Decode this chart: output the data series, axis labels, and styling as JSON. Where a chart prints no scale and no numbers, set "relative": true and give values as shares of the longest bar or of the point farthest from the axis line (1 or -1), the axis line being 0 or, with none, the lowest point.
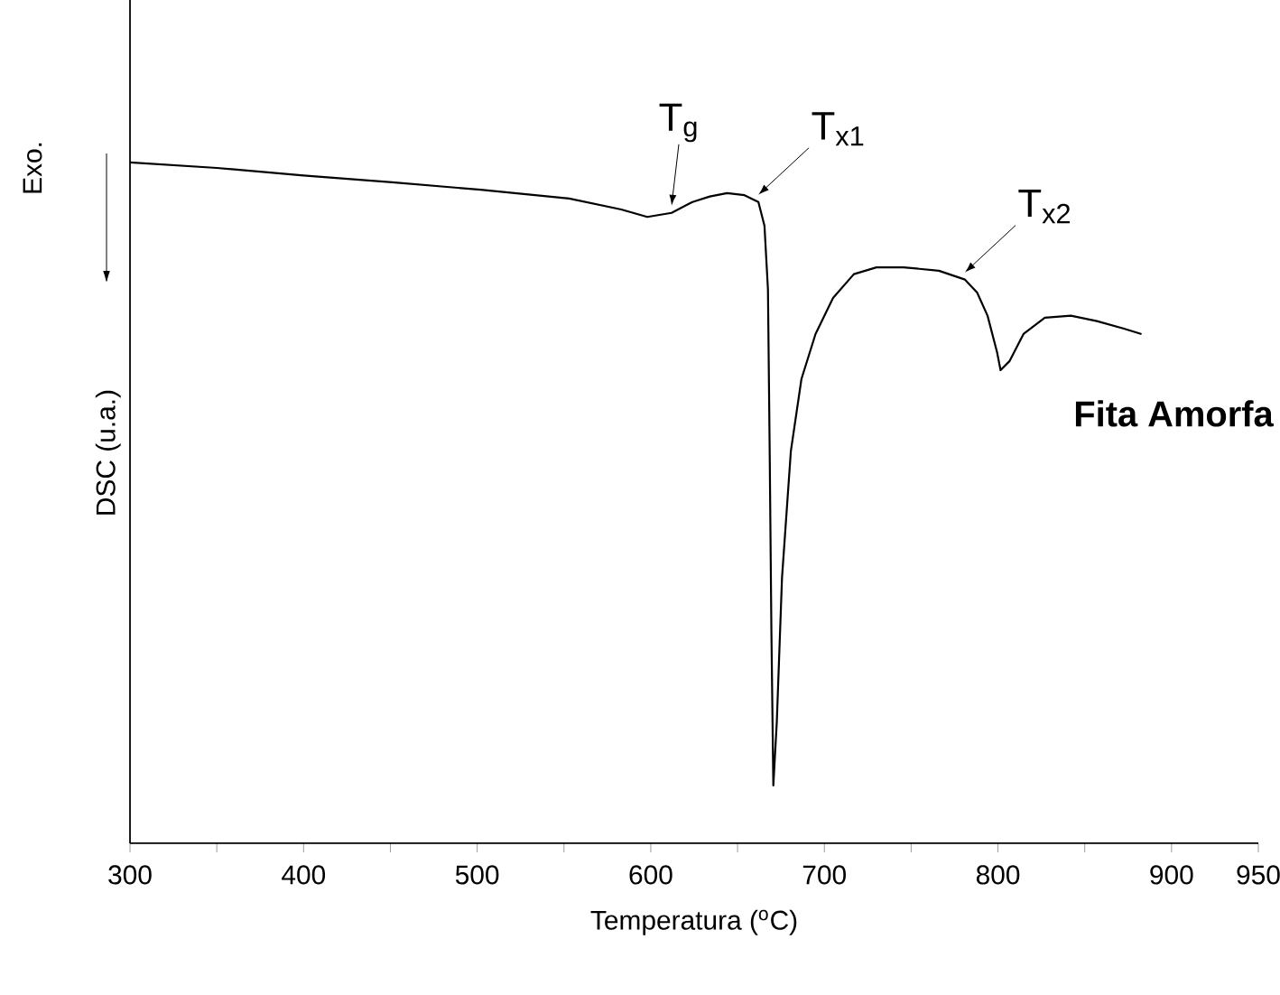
{
  "chart_data": {
    "type": "line",
    "xlabel": "Temperatura ($^{o}$C)",
    "ylabel": "DSC (u.a.)",
    "relative": true,
    "color": "#000000",
    "xlim": [
      300,
      950
    ],
    "xticks": [
      300,
      {
        "value": 350,
        "label": null
      },
      400,
      {
        "value": 450,
        "label": null
      },
      500,
      {
        "value": 550,
        "label": null
      },
      600,
      {
        "value": 650,
        "label": null
      },
      700,
      {
        "value": 750,
        "label": null
      },
      800,
      {
        "value": 850,
        "label": null
      },
      900,
      950
    ],
    "x": [
      300,
      350,
      400,
      451,
      502,
      553,
      583,
      598,
      612,
      624,
      634,
      644,
      654,
      662,
      665.5,
      667.5,
      668.5,
      669.5,
      670.6,
      672.6,
      675.6,
      680.7,
      686.8,
      694.9,
      705,
      717,
      730,
      745.7,
      766,
      781,
      788,
      794,
      799.5,
      801.5,
      806.6,
      814.7,
      827,
      842,
      857,
      872.6,
      882.7
    ],
    "values": [
      1.0,
      0.992,
      0.981,
      0.971,
      0.96,
      0.947,
      0.931,
      0.92,
      0.926,
      0.942,
      0.95,
      0.955,
      0.952,
      0.942,
      0.907,
      0.814,
      0.576,
      0.31,
      0.085,
      0.178,
      0.39,
      0.576,
      0.682,
      0.748,
      0.801,
      0.836,
      0.846,
      0.846,
      0.841,
      0.828,
      0.809,
      0.775,
      0.721,
      0.695,
      0.708,
      0.748,
      0.772,
      0.775,
      0.767,
      0.756,
      0.748
    ],
    "annotations": [
      {
        "text": "T$_{g}$",
        "x": 612,
        "y": 0.926
      },
      {
        "text": "T$_{x1}$",
        "x": 662,
        "y": 0.942
      },
      {
        "text": "T$_{x2}$",
        "x": 781,
        "y": 0.828
      },
      "Fita Amorfa",
      "Exo."
    ]
  }
}
